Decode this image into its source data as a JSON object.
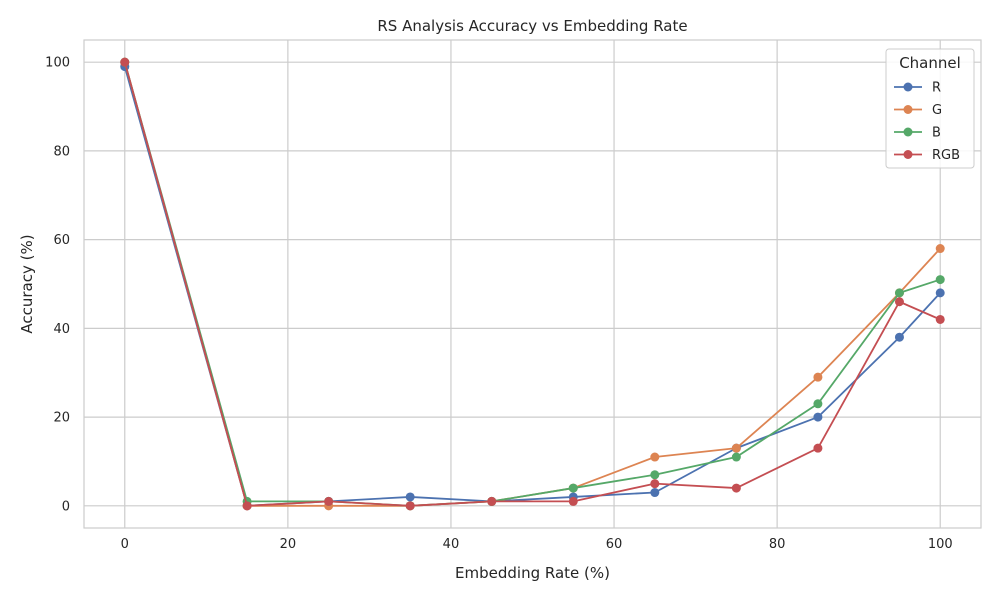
{
  "chart_data": {
    "type": "line",
    "title": "RS Analysis Accuracy vs Embedding Rate",
    "xlabel": "Embedding Rate (%)",
    "ylabel": "Accuracy (%)",
    "xlim": [
      -5,
      105
    ],
    "ylim": [
      -5,
      105
    ],
    "xticks": [
      0,
      20,
      40,
      60,
      80,
      100
    ],
    "yticks": [
      0,
      20,
      40,
      60,
      80,
      100
    ],
    "grid": true,
    "legend": {
      "title": "Channel",
      "placement": "top-right"
    },
    "x": [
      0,
      15,
      25,
      35,
      45,
      55,
      65,
      75,
      85,
      95,
      100
    ],
    "series": [
      {
        "name": "R",
        "color": "#4c72b0",
        "values": [
          99,
          0,
          1,
          2,
          1,
          2,
          3,
          13,
          20,
          38,
          48
        ]
      },
      {
        "name": "G",
        "color": "#dd8452",
        "values": [
          100,
          0,
          0,
          0,
          1,
          4,
          11,
          13,
          29,
          48,
          58
        ]
      },
      {
        "name": "B",
        "color": "#55a868",
        "values": [
          100,
          1,
          1,
          0,
          1,
          4,
          7,
          11,
          23,
          48,
          51
        ]
      },
      {
        "name": "RGB",
        "color": "#c44e52",
        "values": [
          100,
          0,
          1,
          0,
          1,
          1,
          5,
          4,
          13,
          46,
          42
        ]
      }
    ]
  }
}
